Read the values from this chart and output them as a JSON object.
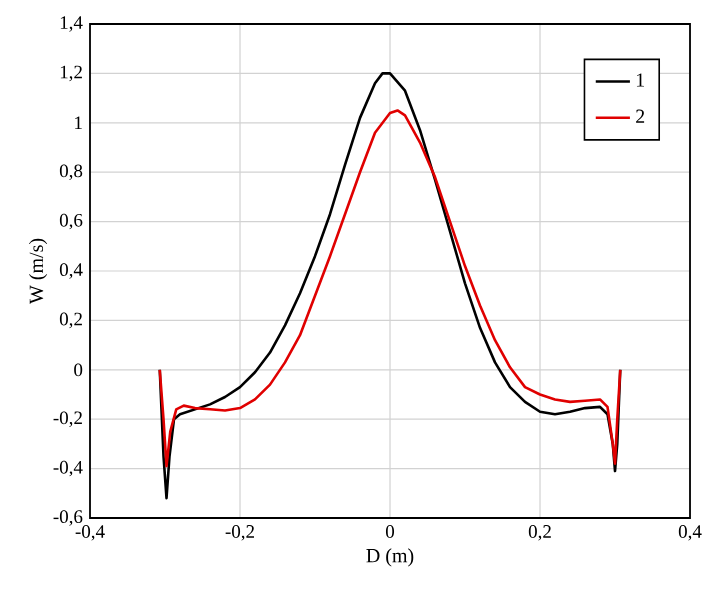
{
  "chart_data": {
    "type": "line",
    "xlabel": "D (m)",
    "ylabel": "W (m/s)",
    "xlim": [
      -0.4,
      0.4
    ],
    "ylim": [
      -0.6,
      1.4
    ],
    "xticks": [
      {
        "value": -0.4,
        "label": "-0,4"
      },
      {
        "value": -0.2,
        "label": "-0,2"
      },
      0,
      {
        "value": 0.2,
        "label": "0,2"
      },
      {
        "value": 0.4,
        "label": "0,4"
      }
    ],
    "yticks": [
      {
        "value": -0.6,
        "label": "-0,6"
      },
      {
        "value": -0.4,
        "label": "-0,4"
      },
      {
        "value": -0.2,
        "label": "-0,2"
      },
      0,
      {
        "value": 0.2,
        "label": "0,2"
      },
      {
        "value": 0.4,
        "label": "0,4"
      },
      {
        "value": 0.6,
        "label": "0,6"
      },
      {
        "value": 0.8,
        "label": "0,8"
      },
      1,
      {
        "value": 1.2,
        "label": "1,2"
      },
      {
        "value": 1.4,
        "label": "1,4"
      }
    ],
    "grid": true,
    "legend": "top right",
    "line_style": "solid",
    "series": [
      {
        "name": "1",
        "color": "#000000",
        "x": [
          -0.307,
          -0.302,
          -0.298,
          -0.294,
          -0.288,
          -0.28,
          -0.26,
          -0.24,
          -0.22,
          -0.2,
          -0.18,
          -0.16,
          -0.14,
          -0.12,
          -0.1,
          -0.08,
          -0.06,
          -0.04,
          -0.02,
          -0.01,
          0,
          0.02,
          0.04,
          0.06,
          0.08,
          0.1,
          0.12,
          0.14,
          0.16,
          0.18,
          0.2,
          0.22,
          0.24,
          0.26,
          0.28,
          0.29,
          0.297,
          0.3,
          0.303,
          0.307
        ],
        "values": [
          0,
          -0.35,
          -0.52,
          -0.35,
          -0.2,
          -0.18,
          -0.16,
          -0.14,
          -0.11,
          -0.07,
          -0.01,
          0.07,
          0.18,
          0.31,
          0.46,
          0.63,
          0.83,
          1.02,
          1.16,
          1.2,
          1.2,
          1.13,
          0.97,
          0.77,
          0.56,
          0.35,
          0.17,
          0.03,
          -0.07,
          -0.13,
          -0.17,
          -0.18,
          -0.17,
          -0.155,
          -0.15,
          -0.18,
          -0.3,
          -0.41,
          -0.3,
          0
        ]
      },
      {
        "name": "2",
        "color": "#e00000",
        "x": [
          -0.307,
          -0.302,
          -0.298,
          -0.293,
          -0.285,
          -0.275,
          -0.26,
          -0.24,
          -0.22,
          -0.2,
          -0.18,
          -0.16,
          -0.14,
          -0.12,
          -0.1,
          -0.08,
          -0.06,
          -0.04,
          -0.02,
          0,
          0.01,
          0.02,
          0.04,
          0.06,
          0.08,
          0.1,
          0.12,
          0.14,
          0.16,
          0.18,
          0.2,
          0.22,
          0.24,
          0.26,
          0.28,
          0.29,
          0.297,
          0.3,
          0.303,
          0.307
        ],
        "values": [
          0,
          -0.2,
          -0.39,
          -0.25,
          -0.16,
          -0.145,
          -0.155,
          -0.16,
          -0.165,
          -0.155,
          -0.12,
          -0.06,
          0.03,
          0.14,
          0.3,
          0.46,
          0.63,
          0.8,
          0.96,
          1.04,
          1.05,
          1.03,
          0.92,
          0.78,
          0.6,
          0.42,
          0.26,
          0.12,
          0.01,
          -0.07,
          -0.1,
          -0.12,
          -0.13,
          -0.125,
          -0.12,
          -0.15,
          -0.3,
          -0.38,
          -0.2,
          0
        ]
      }
    ]
  }
}
